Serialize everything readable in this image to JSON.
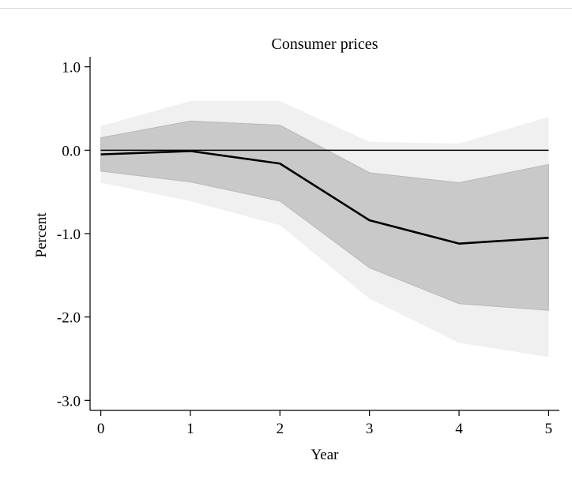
{
  "chart_data": {
    "type": "line",
    "title": "Consumer prices",
    "xlabel": "Year",
    "ylabel": "Percent",
    "x": [
      0,
      1,
      2,
      3,
      4,
      5
    ],
    "xticks": [
      "0",
      "1",
      "2",
      "3",
      "4",
      "5"
    ],
    "yticks": [
      {
        "value": 1.0,
        "label": "1.0"
      },
      {
        "value": 0.0,
        "label": "0.0"
      },
      {
        "value": -1.0,
        "label": "-1.0"
      },
      {
        "value": -2.0,
        "label": "-2.0"
      },
      {
        "value": -3.0,
        "label": "-3.0"
      }
    ],
    "xlim": [
      -0.12,
      5.12
    ],
    "ylim": [
      -3.12,
      1.12
    ],
    "series": [
      {
        "values": [
          -0.05,
          -0.01,
          -0.16,
          -0.84,
          -1.12,
          -1.05
        ],
        "color": "#000000"
      }
    ],
    "bands": [
      {
        "lower": [
          -0.39,
          -0.61,
          -0.9,
          -1.78,
          -2.31,
          -2.48
        ],
        "upper": [
          0.29,
          0.59,
          0.59,
          0.1,
          0.08,
          0.4
        ],
        "color": "#f0f0f0"
      },
      {
        "lower": [
          -0.25,
          -0.38,
          -0.61,
          -1.41,
          -1.84,
          -1.92
        ],
        "upper": [
          0.15,
          0.35,
          0.3,
          -0.27,
          -0.39,
          -0.17
        ],
        "color": "#c9c9c9"
      }
    ],
    "reference_line": 0.0,
    "grid": false,
    "legend": "none"
  }
}
